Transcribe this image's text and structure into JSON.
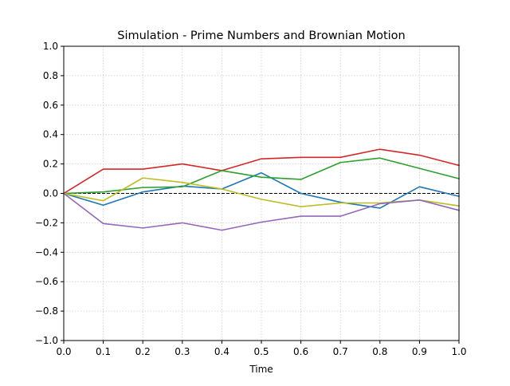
{
  "chart_data": {
    "type": "line",
    "title": "Simulation - Prime Numbers and Brownian Motion",
    "xlabel": "Time",
    "ylabel": "",
    "xlim": [
      0.0,
      1.0
    ],
    "ylim": [
      -1.0,
      1.0
    ],
    "grid": true,
    "legend": "none",
    "x": [
      0.0,
      0.1,
      0.2,
      0.3,
      0.4,
      0.5,
      0.6,
      0.7,
      0.8,
      0.9,
      1.0
    ],
    "x_tick_labels": [
      "0.0",
      "0.1",
      "0.2",
      "0.3",
      "0.4",
      "0.5",
      "0.6",
      "0.7",
      "0.8",
      "0.9",
      "1.0"
    ],
    "y_ticks": [
      -1.0,
      -0.8,
      -0.6,
      -0.4,
      -0.2,
      0.0,
      0.2,
      0.4,
      0.6,
      0.8,
      1.0
    ],
    "y_tick_labels": [
      "−1.0",
      "−0.8",
      "−0.6",
      "−0.4",
      "−0.2",
      "0.0",
      "0.2",
      "0.4",
      "0.6",
      "0.8",
      "1.0"
    ],
    "reference_line": {
      "y": 0.0,
      "style": "dashed",
      "color": "#000000"
    },
    "series": [
      {
        "color": "#1f77b4",
        "values": [
          0.0,
          -0.08,
          0.01,
          0.05,
          0.03,
          0.14,
          0.0,
          -0.06,
          -0.1,
          0.045,
          -0.02
        ]
      },
      {
        "color": "#d62728",
        "values": [
          0.0,
          0.165,
          0.165,
          0.2,
          0.155,
          0.235,
          0.245,
          0.245,
          0.3,
          0.26,
          0.19
        ]
      },
      {
        "color": "#2ca02c",
        "values": [
          0.0,
          0.01,
          0.04,
          0.045,
          0.155,
          0.11,
          0.095,
          0.21,
          0.24,
          0.17,
          0.1
        ]
      },
      {
        "color": "#bcbd22",
        "values": [
          0.0,
          -0.05,
          0.105,
          0.075,
          0.03,
          -0.04,
          -0.09,
          -0.065,
          -0.065,
          -0.045,
          -0.085
        ]
      },
      {
        "color": "#9467bd",
        "values": [
          0.0,
          -0.205,
          -0.235,
          -0.2,
          -0.25,
          -0.195,
          -0.155,
          -0.155,
          -0.07,
          -0.045,
          -0.115
        ]
      }
    ]
  }
}
